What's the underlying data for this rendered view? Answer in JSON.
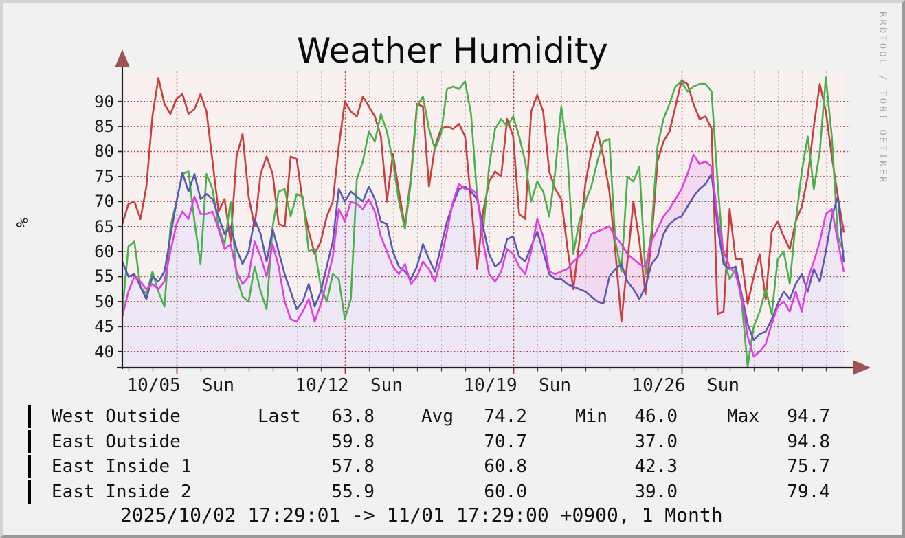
{
  "chart_data": {
    "type": "line",
    "title": "Weather Humidity",
    "ylabel": "%",
    "watermark": "RRDTOOL / TOBI OETIKER",
    "footer": "2025/10/02 17:29:01 -> 11/01 17:29:00 +0900, 1 Month",
    "xlim_days": [
      0,
      30
    ],
    "ylim": [
      36.8,
      96.0
    ],
    "y_ticks": [
      40,
      45,
      50,
      55,
      60,
      65,
      70,
      75,
      80,
      85,
      90
    ],
    "x_minor_first_day": 0.2708,
    "x_minor_step_days": 1,
    "x_minor_count": 30,
    "x_major": [
      {
        "day": 2.2708,
        "label": "10/05  Sun"
      },
      {
        "day": 9.2708,
        "label": "10/12  Sun"
      },
      {
        "day": 16.2708,
        "label": "10/19  Sun"
      },
      {
        "day": 23.2708,
        "label": "10/26  Sun"
      }
    ],
    "sample_step_days": 0.25,
    "grid": {
      "minor_color": "#bcbcbc",
      "major_color": "#a33c3c",
      "canvas_color": "#f8f1f0",
      "axis_color": "#1f1f1f",
      "arrow_color": "#9e5252"
    },
    "series": [
      {
        "name": "West Outside",
        "color": "#cc3d3d",
        "fill": null,
        "values": [
          65.5,
          69.5,
          70,
          66.5,
          73,
          87,
          94.7,
          89.5,
          87.5,
          90.5,
          91.5,
          87.5,
          88.5,
          91.5,
          88,
          78,
          68,
          70.5,
          62,
          79,
          83.5,
          71,
          65,
          75.5,
          79,
          75.5,
          65.5,
          65,
          79,
          78.5,
          70,
          64,
          59.5,
          62,
          67,
          70,
          81,
          90,
          88,
          87,
          91,
          89,
          87,
          83,
          70,
          79.5,
          72,
          65,
          75,
          89.5,
          89,
          73,
          81,
          84.5,
          85,
          84.5,
          85.5,
          83,
          70,
          56.5,
          68,
          74,
          76,
          75,
          86.5,
          83,
          67.5,
          66.5,
          88,
          91.3,
          88,
          76,
          72.5,
          70.5,
          61,
          52.5,
          62,
          73.5,
          80,
          84,
          79,
          72,
          60,
          46,
          58,
          70,
          62,
          51.5,
          62,
          78,
          82,
          84,
          89,
          94.2,
          93.5,
          89.5,
          86.5,
          87,
          84.5,
          47.5,
          48,
          68.5,
          58.5,
          58.5,
          49.5,
          55,
          59.5,
          50.5,
          64,
          66,
          63,
          60.5,
          66,
          69,
          75,
          85,
          93.5,
          88,
          79,
          71,
          63.8
        ]
      },
      {
        "name": "East Outside",
        "color": "#49b14c",
        "fill": null,
        "values": [
          48,
          61,
          62,
          53,
          51.5,
          56,
          52,
          49,
          65,
          70,
          75.5,
          76,
          66,
          57.5,
          75.5,
          72.5,
          65,
          61.5,
          70,
          55,
          51,
          50,
          57,
          52,
          48.5,
          65,
          72,
          72.5,
          67,
          71.5,
          71,
          60,
          60.5,
          53,
          50,
          55.5,
          54.5,
          46.5,
          50.5,
          74.5,
          78,
          84,
          82,
          87.5,
          84,
          78,
          70,
          64.5,
          74,
          89,
          91,
          84.5,
          80.5,
          83.5,
          92.5,
          93,
          92.5,
          94,
          87.5,
          71,
          64,
          77,
          84.5,
          86.5,
          85,
          87,
          83,
          78,
          70,
          74,
          72,
          67,
          76,
          89,
          80,
          59.5,
          66,
          70,
          73,
          78,
          82,
          82.5,
          62,
          56,
          75,
          74,
          77,
          55.5,
          64,
          81,
          86.5,
          89.5,
          93,
          94,
          92,
          93,
          93.5,
          93.5,
          92,
          74,
          58.5,
          54.5,
          56.5,
          50,
          37,
          45,
          48,
          52.5,
          47.5,
          58.5,
          60,
          53.5,
          66,
          76,
          83,
          72.5,
          80,
          94.8,
          83,
          63,
          59.8
        ]
      },
      {
        "name": "East Inside 1",
        "color": "#5a58b2",
        "fill": "rgba(236,234,246,0.78)",
        "values": [
          58,
          55,
          55.5,
          53,
          50.5,
          55,
          54,
          56,
          63,
          70,
          75.7,
          72,
          75.5,
          70.5,
          71.5,
          70.5,
          67,
          63.5,
          65,
          60.5,
          57.5,
          60,
          66.5,
          63.5,
          58,
          64.5,
          60,
          55.5,
          52,
          48.5,
          50,
          53.5,
          49,
          52,
          57,
          62,
          72.5,
          70,
          72,
          71,
          70,
          73,
          70.5,
          66,
          65.5,
          60,
          57,
          56,
          54.5,
          57,
          61.5,
          58.5,
          56,
          61,
          66,
          69.5,
          72.5,
          73,
          72,
          70.5,
          65,
          59.5,
          57,
          58,
          62.5,
          63,
          59,
          58,
          61,
          64,
          60,
          55.5,
          54.5,
          54.5,
          53.5,
          53,
          52.5,
          52,
          51,
          50,
          49.6,
          55,
          56.5,
          57.5,
          54,
          52.5,
          50.5,
          53,
          57.5,
          59,
          63.5,
          65.5,
          66.5,
          67,
          69,
          71,
          72.5,
          73.5,
          75.5,
          65,
          57.5,
          56.5,
          57,
          51.5,
          45.5,
          42.3,
          43.5,
          44,
          46.5,
          49.5,
          52,
          50.5,
          53.5,
          55.5,
          52,
          56.5,
          54,
          60,
          67,
          71,
          57.8
        ]
      },
      {
        "name": "East Inside 2",
        "color": "#e23ee2",
        "fill": "rgba(240,198,240,0.55)",
        "values": [
          47,
          52,
          55,
          54,
          52.5,
          53.5,
          52.5,
          54,
          60,
          65.5,
          68,
          66.5,
          71,
          67.5,
          67.5,
          68,
          64.5,
          60.5,
          61.5,
          56,
          53.5,
          55,
          62,
          59,
          55,
          61.5,
          57,
          50,
          46.5,
          46,
          48,
          50.5,
          46,
          49.5,
          54,
          59,
          68.5,
          66,
          70,
          69.5,
          68.5,
          70.5,
          68,
          63,
          60,
          57,
          55.5,
          57.5,
          53.5,
          55,
          58,
          56.5,
          54,
          58.5,
          64,
          70,
          73.5,
          72.5,
          72.5,
          71.5,
          62,
          55.5,
          54,
          56,
          60.5,
          59.5,
          57,
          55.5,
          60,
          66.5,
          63,
          56,
          55.5,
          56,
          56.5,
          58,
          59,
          60.5,
          63.5,
          64,
          64.5,
          65,
          63,
          61.5,
          59.5,
          58.5,
          57.5,
          57,
          62,
          64.5,
          67,
          68.5,
          70.5,
          72.5,
          75.5,
          79.4,
          77.5,
          78,
          77,
          67,
          60,
          57,
          55.5,
          51,
          43,
          39,
          40,
          41.5,
          45.5,
          49,
          50,
          48,
          52,
          48,
          54.5,
          58,
          62,
          67.5,
          68.5,
          62,
          55.9
        ]
      }
    ]
  },
  "legend": {
    "headers": [
      "Last",
      "Avg",
      "Min",
      "Max"
    ],
    "rows": [
      {
        "name": "West Outside",
        "swatch": "#f59a96",
        "last": "63.8",
        "avg": "74.2",
        "min": "46.0",
        "max": "94.7"
      },
      {
        "name": "East Outside",
        "swatch": "#c9e6c4",
        "last": "59.8",
        "avg": "70.7",
        "min": "37.0",
        "max": "94.8"
      },
      {
        "name": "East Inside 1",
        "swatch": "#e8e8f2",
        "last": "57.8",
        "avg": "60.8",
        "min": "42.3",
        "max": "75.7"
      },
      {
        "name": "East Inside 2",
        "swatch": "#f2c6f4",
        "last": "55.9",
        "avg": "60.0",
        "min": "39.0",
        "max": "79.4"
      }
    ]
  }
}
